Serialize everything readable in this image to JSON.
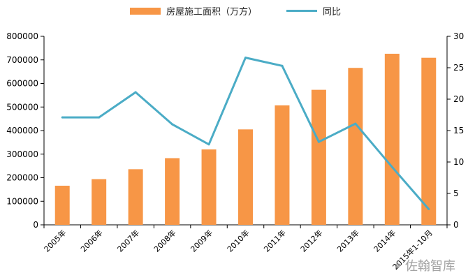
{
  "chart_data": {
    "type": "bar",
    "categories": [
      "2005年",
      "2006年",
      "2007年",
      "2008年",
      "2009年",
      "2010年",
      "2011年",
      "2012年",
      "2013年",
      "2014年",
      "2015年1-10月"
    ],
    "series": [
      {
        "name": "房屋施工面积（万方）",
        "type": "bar",
        "axis": "left",
        "color": "#F79646",
        "values": [
          166000,
          194000,
          236000,
          283000,
          320000,
          405000,
          507000,
          573000,
          666000,
          726000,
          709000
        ]
      },
      {
        "name": "同比",
        "type": "line",
        "axis": "right",
        "color": "#4BACC6",
        "values": [
          17.1,
          17.1,
          21.1,
          16.0,
          12.8,
          26.6,
          25.3,
          13.2,
          16.1,
          9.2,
          2.5
        ]
      }
    ],
    "y_left": {
      "min": 0,
      "max": 800000,
      "ticks": [
        0,
        100000,
        200000,
        300000,
        400000,
        500000,
        600000,
        700000,
        800000
      ]
    },
    "y_right": {
      "min": 0,
      "max": 30,
      "ticks": [
        0,
        5,
        10,
        15,
        20,
        25,
        30
      ]
    },
    "legend_position": "top-center"
  },
  "legend": {
    "bar_label": "房屋施工面积（万方）",
    "line_label": "同比"
  },
  "watermark": {
    "text": "佐翰智库"
  }
}
